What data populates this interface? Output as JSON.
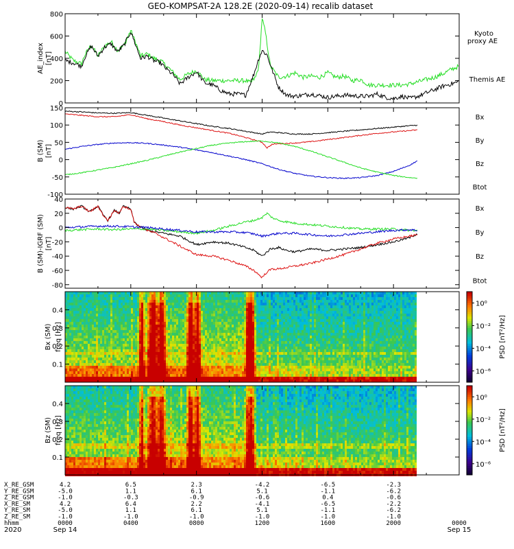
{
  "title": "GEO-KOMPSAT-2A 128.2E (2020-09-14) recalib dataset",
  "colors": {
    "black": "#000000",
    "green": "#22dd22",
    "red": "#dd1111",
    "blue": "#0000cc",
    "legend_green": "#22cc22",
    "legend_blue": "#0000cc",
    "legend_red": "#dd1111"
  },
  "chart_data": [
    {
      "type": "line",
      "panel": "ae",
      "ylabel": "AE_index",
      "yunit": "[nT]",
      "ylim": [
        0,
        800
      ],
      "yticks": [
        0,
        200,
        400,
        600,
        800
      ],
      "xlim_hours": [
        0,
        24
      ],
      "legend": [
        "Kyoto",
        "proxy AE",
        "Themis AE"
      ],
      "series": [
        {
          "name": "Kyoto proxy AE",
          "color": "#22dd22",
          "x": [
            0,
            0.5,
            1,
            1.2,
            1.6,
            2,
            2.4,
            2.8,
            3.2,
            3.6,
            4,
            4.3,
            4.6,
            5,
            5.4,
            5.8,
            6.2,
            6.6,
            7,
            7.5,
            8,
            8.5,
            9,
            10,
            10.5,
            11,
            11.3,
            11.6,
            11.8,
            11.9,
            12,
            12.2,
            12.5,
            13,
            13.5,
            14,
            14.5,
            15,
            15.5,
            16,
            16.5,
            17,
            17.5,
            18,
            18.5,
            19,
            19.5,
            20,
            20.5,
            21,
            21.5,
            22,
            22.5,
            23,
            23.5,
            24
          ],
          "y": [
            460,
            380,
            350,
            430,
            520,
            420,
            510,
            550,
            470,
            520,
            650,
            540,
            420,
            440,
            400,
            380,
            330,
            270,
            210,
            260,
            290,
            210,
            200,
            200,
            200,
            200,
            180,
            230,
            330,
            550,
            760,
            630,
            330,
            230,
            240,
            270,
            230,
            240,
            230,
            270,
            230,
            240,
            200,
            210,
            160,
            160,
            160,
            160,
            160,
            170,
            190,
            210,
            230,
            260,
            300,
            330
          ]
        },
        {
          "name": "Themis AE",
          "color": "#000000",
          "x": [
            0,
            0.5,
            1,
            1.2,
            1.6,
            2,
            2.4,
            2.8,
            3.2,
            3.6,
            4,
            4.3,
            4.6,
            5,
            5.4,
            5.8,
            6.2,
            6.6,
            7,
            7.5,
            8,
            8.5,
            9,
            9.5,
            10,
            10.5,
            11,
            11.5,
            11.8,
            12,
            12.3,
            12.6,
            13,
            13.5,
            14,
            15,
            16,
            17,
            18,
            18.5,
            19,
            19.5,
            20,
            20.5,
            21,
            21.5,
            22,
            22.5,
            23,
            23.5,
            24
          ],
          "y": [
            380,
            360,
            330,
            410,
            510,
            420,
            500,
            530,
            460,
            520,
            640,
            520,
            400,
            420,
            380,
            360,
            300,
            250,
            170,
            230,
            280,
            180,
            160,
            110,
            80,
            80,
            70,
            260,
            400,
            470,
            430,
            300,
            140,
            70,
            60,
            80,
            50,
            70,
            60,
            60,
            80,
            50,
            40,
            60,
            40,
            60,
            90,
            120,
            150,
            170,
            190
          ]
        }
      ]
    },
    {
      "type": "line",
      "panel": "b",
      "ylabel": "B (SM)",
      "yunit": "[nT]",
      "ylim": [
        -100,
        150
      ],
      "yticks": [
        -100,
        -50,
        0,
        50,
        100,
        150
      ],
      "xlim_hours": [
        0,
        24
      ],
      "legend": [
        "Bx",
        "By",
        "Bz",
        "Btot"
      ],
      "series": [
        {
          "name": "Btot",
          "color": "#000000",
          "x": [
            0,
            1,
            2,
            3,
            4,
            5,
            6,
            7,
            8,
            9,
            10,
            11,
            12,
            12.5,
            13,
            14,
            15,
            16,
            17,
            18,
            19,
            20,
            21,
            21.5
          ],
          "y": [
            140,
            138,
            135,
            134,
            136,
            128,
            120,
            112,
            104,
            96,
            90,
            82,
            74,
            80,
            78,
            74,
            74,
            78,
            82,
            86,
            90,
            94,
            98,
            100
          ]
        },
        {
          "name": "Bz",
          "color": "#dd1111",
          "x": [
            0,
            1,
            2,
            3,
            4,
            5,
            6,
            7,
            8,
            9,
            10,
            11,
            12,
            12.3,
            12.6,
            13,
            14,
            15,
            16,
            17,
            18,
            19,
            20,
            21,
            21.5
          ],
          "y": [
            132,
            128,
            124,
            124,
            130,
            118,
            110,
            100,
            92,
            84,
            76,
            64,
            50,
            34,
            44,
            46,
            48,
            52,
            58,
            64,
            70,
            76,
            80,
            84,
            86
          ]
        },
        {
          "name": "Bx",
          "color": "#0000cc",
          "x": [
            0,
            1,
            2,
            3,
            4,
            5,
            6,
            7,
            8,
            9,
            10,
            11,
            12,
            13,
            14,
            15,
            16,
            17,
            18,
            19,
            20,
            21,
            21.5
          ],
          "y": [
            30,
            38,
            44,
            48,
            49,
            47,
            42,
            36,
            28,
            20,
            10,
            0,
            -12,
            -28,
            -40,
            -48,
            -52,
            -54,
            -52,
            -46,
            -34,
            -16,
            -2
          ]
        },
        {
          "name": "By",
          "color": "#22dd22",
          "x": [
            0,
            1,
            2,
            3,
            4,
            5,
            6,
            7,
            8,
            9,
            10,
            11,
            12,
            13,
            14,
            15,
            16,
            17,
            18,
            19,
            20,
            21,
            21.5
          ],
          "y": [
            -44,
            -38,
            -30,
            -22,
            -12,
            -2,
            10,
            22,
            32,
            42,
            48,
            52,
            54,
            48,
            38,
            24,
            8,
            -8,
            -24,
            -36,
            -46,
            -52,
            -54
          ]
        }
      ]
    },
    {
      "type": "line",
      "panel": "dbb",
      "ylabel": "B (SM)-IGRF (SM)",
      "yunit": "[nT]",
      "ylim": [
        -85,
        40
      ],
      "yticks": [
        -80,
        -60,
        -40,
        -20,
        0,
        20,
        40
      ],
      "xlim_hours": [
        0,
        24
      ],
      "legend": [
        "Bx",
        "By",
        "Bz",
        "Btot"
      ],
      "series": [
        {
          "name": "Btot",
          "color": "#000000",
          "x": [
            0,
            0.5,
            1,
            1.5,
            2,
            2.3,
            2.6,
            3,
            3.3,
            3.5,
            4,
            4.2,
            4.5,
            5,
            5.5,
            6,
            6.5,
            7,
            7.5,
            8,
            9,
            10,
            11,
            11.5,
            12,
            12.5,
            13,
            13.5,
            14,
            15,
            16,
            17,
            18,
            19,
            20,
            21,
            21.5
          ],
          "y": [
            28,
            26,
            30,
            22,
            30,
            18,
            10,
            24,
            20,
            30,
            26,
            8,
            2,
            -4,
            -6,
            -8,
            -10,
            -12,
            -18,
            -24,
            -20,
            -22,
            -28,
            -32,
            -40,
            -30,
            -28,
            -32,
            -34,
            -30,
            -32,
            -30,
            -28,
            -24,
            -20,
            -14,
            -8
          ]
        },
        {
          "name": "Bz",
          "color": "#dd1111",
          "x": [
            0,
            0.5,
            1,
            1.5,
            2,
            2.3,
            2.6,
            3,
            3.3,
            3.5,
            4,
            4.2,
            4.5,
            5,
            5.5,
            6,
            6.5,
            7,
            7.5,
            8,
            9,
            10,
            11,
            11.5,
            12,
            12.3,
            12.6,
            13,
            13.5,
            14,
            15,
            16,
            17,
            18,
            19,
            20,
            21,
            21.5
          ],
          "y": [
            28,
            26,
            30,
            22,
            30,
            18,
            10,
            24,
            20,
            30,
            26,
            8,
            2,
            -4,
            -8,
            -14,
            -20,
            -26,
            -32,
            -38,
            -40,
            -46,
            -54,
            -60,
            -70,
            -62,
            -58,
            -58,
            -56,
            -54,
            -50,
            -44,
            -38,
            -30,
            -22,
            -16,
            -12,
            -10
          ]
        },
        {
          "name": "By",
          "color": "#22dd22",
          "x": [
            0,
            1,
            2,
            3,
            4,
            5,
            6,
            7,
            8,
            9,
            10,
            11,
            11.5,
            12,
            12.3,
            12.6,
            13,
            14,
            15,
            16,
            17,
            18,
            19,
            20,
            21,
            21.5
          ],
          "y": [
            -4,
            -3,
            -2,
            -3,
            -2,
            -2,
            -4,
            -6,
            -8,
            -4,
            2,
            8,
            10,
            14,
            20,
            14,
            10,
            6,
            4,
            2,
            0,
            -2,
            -2,
            -2,
            -4,
            -4
          ]
        },
        {
          "name": "Bx",
          "color": "#0000cc",
          "x": [
            0,
            1,
            2,
            3,
            4,
            5,
            6,
            7,
            8,
            9,
            10,
            11,
            11.5,
            12,
            12.5,
            13,
            14,
            15,
            16,
            17,
            18,
            19,
            20,
            21,
            21.5
          ],
          "y": [
            0,
            1,
            2,
            2,
            1,
            0,
            -2,
            -4,
            -6,
            -6,
            -6,
            -7,
            -9,
            -12,
            -10,
            -8,
            -8,
            -10,
            -12,
            -10,
            -8,
            -6,
            -4,
            -3,
            -4
          ]
        }
      ]
    },
    {
      "type": "heatmap",
      "panel": "spec-bx",
      "ylabel": "Bx (SM)",
      "yunit": "freq [Hz]",
      "ylim": [
        0,
        0.5
      ],
      "yticks": [
        0.1,
        0.2,
        0.3,
        0.4
      ],
      "xlim_hours": [
        0,
        24
      ],
      "data_end_hours": 21.5,
      "colorbar": {
        "label": "PSD [nT²/Hz]",
        "ticks": [
          "10⁰",
          "10⁻²",
          "10⁻⁴",
          "10⁻⁶"
        ],
        "range": [
          -7,
          1
        ]
      }
    },
    {
      "type": "heatmap",
      "panel": "spec-bz",
      "ylabel": "Bz (SM)",
      "yunit": "freq [Hz]",
      "ylim": [
        0,
        0.5
      ],
      "yticks": [
        0.1,
        0.2,
        0.3,
        0.4
      ],
      "xlim_hours": [
        0,
        24
      ],
      "data_end_hours": 21.5,
      "colorbar": {
        "label": "PSD [nT²/Hz]",
        "ticks": [
          "10⁰",
          "10⁻²",
          "10⁻⁴",
          "10⁻⁶"
        ],
        "range": [
          -7,
          1
        ]
      }
    }
  ],
  "ephemeris": {
    "rows": [
      {
        "label": "X_RE_GSM",
        "values": [
          "4.2",
          "6.5",
          "2.3",
          "-4.2",
          "-6.5",
          "-2.3"
        ]
      },
      {
        "label": "Y_RE_GSM",
        "values": [
          "-5.0",
          "1.1",
          "6.1",
          "5.1",
          "-1.1",
          "-6.2"
        ]
      },
      {
        "label": "Z_RE_GSM",
        "values": [
          "-1.0",
          "-0.3",
          "-0.9",
          "-0.6",
          "0.4",
          "-0.6"
        ]
      },
      {
        "label": "X_RE_SM",
        "values": [
          "4.2",
          "6.4",
          "2.2",
          "-4.1",
          "-6.5",
          "-2.2"
        ]
      },
      {
        "label": "Y_RE_SM",
        "values": [
          "-5.0",
          "1.1",
          "6.1",
          "5.1",
          "-1.1",
          "-6.2"
        ]
      },
      {
        "label": "Z_RE_SM",
        "values": [
          "-1.0",
          "-1.0",
          "-1.0",
          "-1.0",
          "-1.0",
          "-1.0"
        ]
      },
      {
        "label": "hhmm",
        "values": [
          "0000",
          "0400",
          "0800",
          "1200",
          "1600",
          "2000"
        ]
      }
    ],
    "hhmm_end": "0000",
    "year": "2020",
    "start_date": "Sep 14",
    "end_date": "Sep 15"
  }
}
